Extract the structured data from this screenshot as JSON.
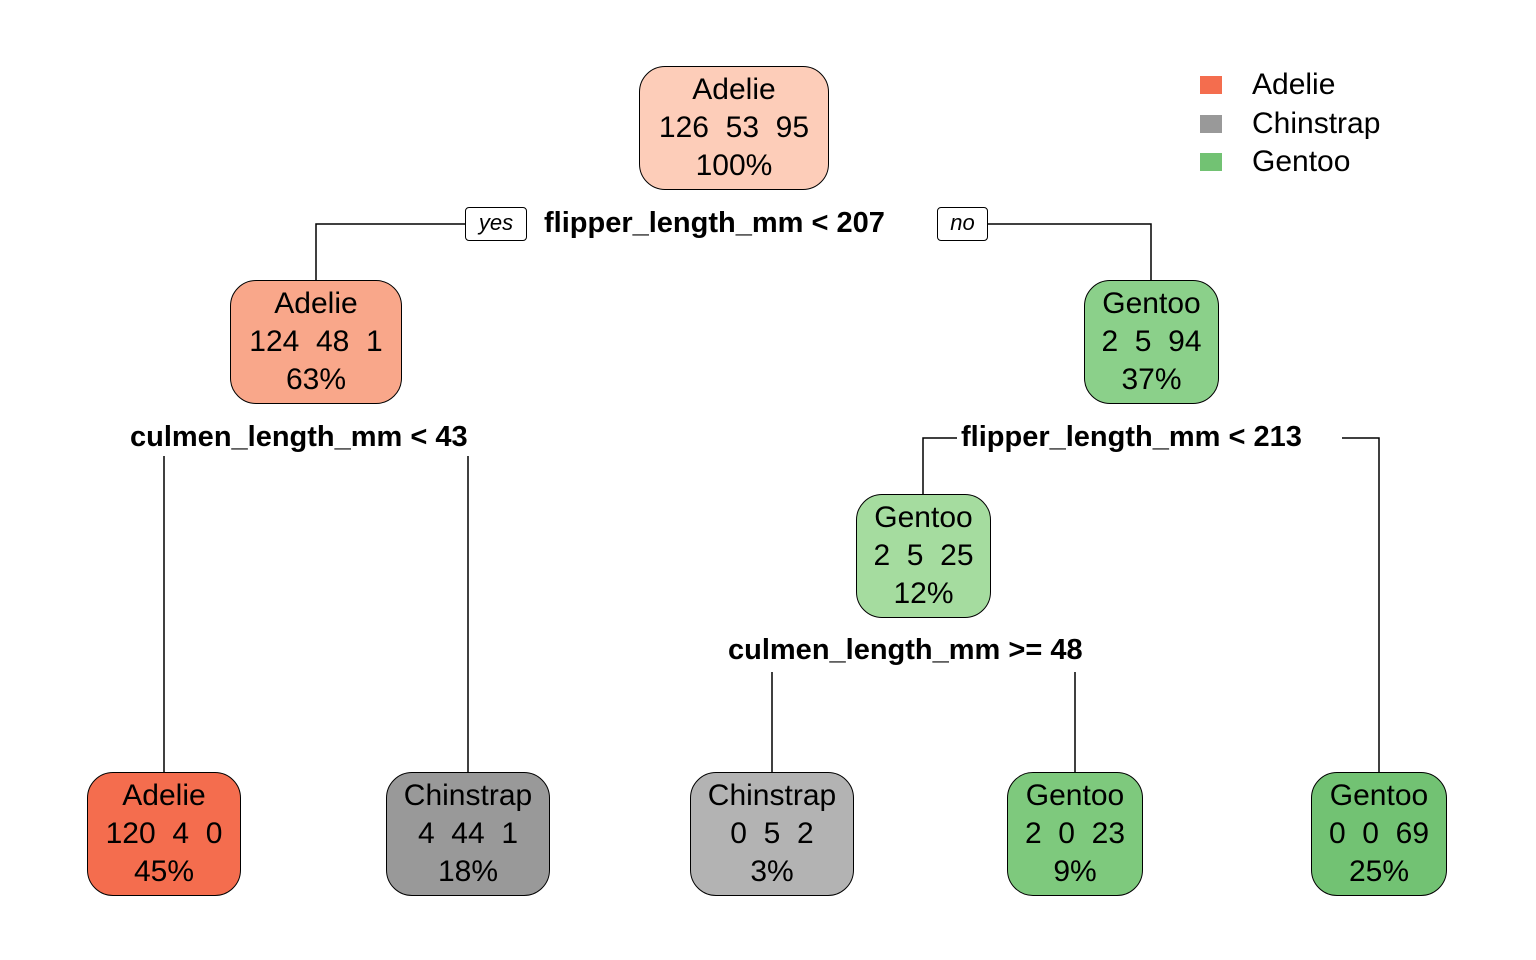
{
  "legend": [
    {
      "label": "Adelie",
      "color": "#f46d4e"
    },
    {
      "label": "Chinstrap",
      "color": "#999999"
    },
    {
      "label": "Gentoo",
      "color": "#72c273"
    }
  ],
  "edge_labels": {
    "yes": "yes",
    "no": "no"
  },
  "nodes": {
    "root": {
      "class": "Adelie",
      "counts": "126  53  95",
      "pct": "100%",
      "color": "#fdcdb9"
    },
    "n2": {
      "class": "Adelie",
      "counts": "124  48  1",
      "pct": "63%",
      "color": "#f9a78a"
    },
    "n3": {
      "class": "Gentoo",
      "counts": "2  5  94",
      "pct": "37%",
      "color": "#8bd08a"
    },
    "n4": {
      "class": "Adelie",
      "counts": "120  4  0",
      "pct": "45%",
      "color": "#f46d4e"
    },
    "n5": {
      "class": "Chinstrap",
      "counts": "4  44  1",
      "pct": "18%",
      "color": "#999999"
    },
    "n6": {
      "class": "Gentoo",
      "counts": "2  5  25",
      "pct": "12%",
      "color": "#a5dc9f"
    },
    "n7": {
      "class": "Gentoo",
      "counts": "0  0  69",
      "pct": "25%",
      "color": "#72c273"
    },
    "n12": {
      "class": "Chinstrap",
      "counts": "0  5  2",
      "pct": "3%",
      "color": "#b3b3b3"
    },
    "n13": {
      "class": "Gentoo",
      "counts": "2  0  23",
      "pct": "9%",
      "color": "#7ec97d"
    }
  },
  "splits": {
    "root": "flipper_length_mm < 207",
    "n2": "culmen_length_mm < 43",
    "n3": "flipper_length_mm < 213",
    "n6": "culmen_length_mm >= 48"
  }
}
